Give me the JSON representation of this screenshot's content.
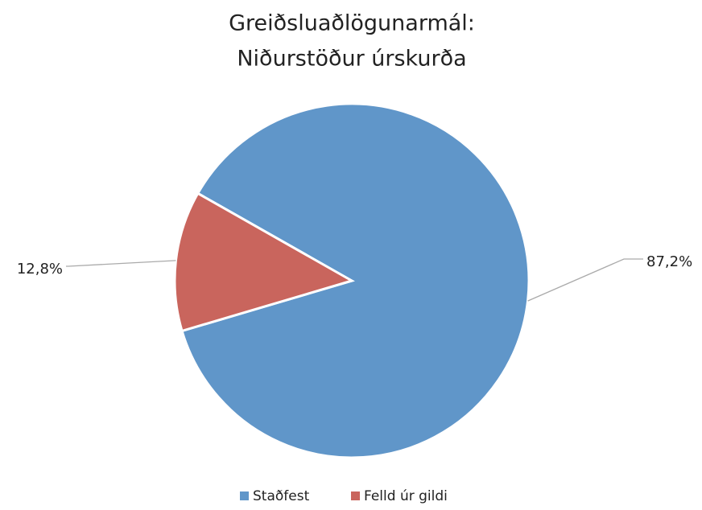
{
  "chart_data": {
    "type": "pie",
    "title": [
      "Greiðsluaðlögunarmál:",
      "Niðurstöður úrskurða"
    ],
    "categories": [
      "Staðfest",
      "Felld úr gildi"
    ],
    "values": [
      87.2,
      12.8
    ],
    "value_labels": [
      "87,2%",
      "12,8%"
    ],
    "colors": [
      "#6096c9",
      "#c9655d"
    ],
    "legend": "bottom"
  }
}
